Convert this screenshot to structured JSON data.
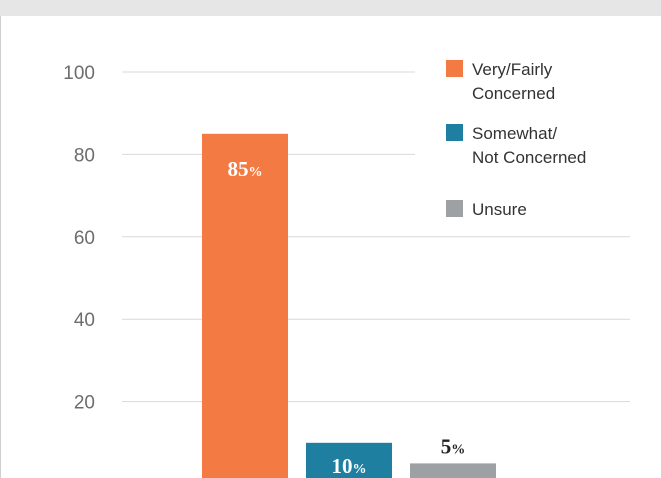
{
  "chart_data": {
    "type": "bar",
    "categories": [
      "Very/Fairly Concerned",
      "Somewhat/ Not Concerned",
      "Unsure"
    ],
    "values": [
      85,
      10,
      5
    ],
    "data_labels": [
      {
        "num": "85",
        "pct": "%"
      },
      {
        "num": "10",
        "pct": "%"
      },
      {
        "num": "5",
        "pct": "%"
      }
    ],
    "colors": [
      "#f47a44",
      "#1f7fa0",
      "#9da1a3"
    ],
    "label_colors": [
      "#ffffff",
      "#ffffff",
      "#222222"
    ],
    "yticks": [
      "100",
      "80",
      "60",
      "40",
      "20"
    ],
    "ylim": [
      0,
      100
    ],
    "grid": true,
    "legend_position": "top-right",
    "legend": [
      {
        "lines": [
          "Very/Fairly",
          "Concerned"
        ],
        "color": "#f47a44"
      },
      {
        "lines": [
          "Somewhat/",
          "Not Concerned"
        ],
        "color": "#1f7fa0"
      },
      {
        "lines": [
          "Unsure"
        ],
        "color": "#9da1a3"
      }
    ],
    "gridline_color": "#d9d9d9"
  }
}
